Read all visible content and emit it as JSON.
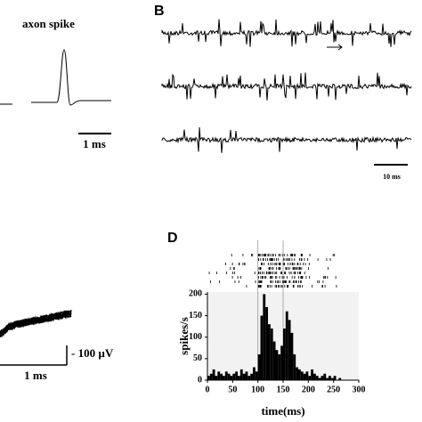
{
  "panels": {
    "a_title": "axon spike",
    "a_scale": "1 ms",
    "b_label": "B",
    "b_scale": "10 ms",
    "c_time_scale": "1 ms",
    "c_amp_scale": "- 100 µV",
    "d_label": "D"
  },
  "chart_data": {
    "type": "histogram",
    "xlabel": "time(ms)",
    "ylabel": "spikes/s",
    "color": "#000000",
    "bins": [
      0,
      5,
      10,
      15,
      20,
      25,
      30,
      35,
      40,
      45,
      50,
      55,
      60,
      65,
      70,
      75,
      80,
      85,
      90,
      95,
      100,
      105,
      110,
      115,
      120,
      125,
      130,
      135,
      140,
      145,
      150,
      155,
      160,
      165,
      170,
      175,
      180,
      185,
      190,
      195,
      200,
      205,
      210,
      215,
      220,
      225,
      230,
      235,
      240,
      245,
      250,
      255,
      260,
      265,
      270,
      275,
      280,
      285,
      290,
      295,
      300
    ],
    "values": [
      10,
      15,
      25,
      10,
      20,
      15,
      10,
      20,
      15,
      10,
      15,
      20,
      10,
      25,
      15,
      20,
      10,
      15,
      30,
      20,
      60,
      150,
      200,
      170,
      130,
      120,
      90,
      70,
      60,
      80,
      120,
      160,
      140,
      110,
      60,
      30,
      25,
      20,
      15,
      20,
      10,
      25,
      15,
      10,
      5,
      10,
      15,
      5,
      10,
      5,
      10,
      0,
      5,
      0,
      0,
      0,
      0,
      0,
      0,
      0
    ],
    "xlim": [
      0,
      300
    ],
    "ylim": [
      0,
      205
    ],
    "xticks": [
      0,
      50,
      100,
      150,
      200,
      250,
      300
    ],
    "yticks": [
      0,
      50,
      100,
      150,
      200
    ]
  }
}
